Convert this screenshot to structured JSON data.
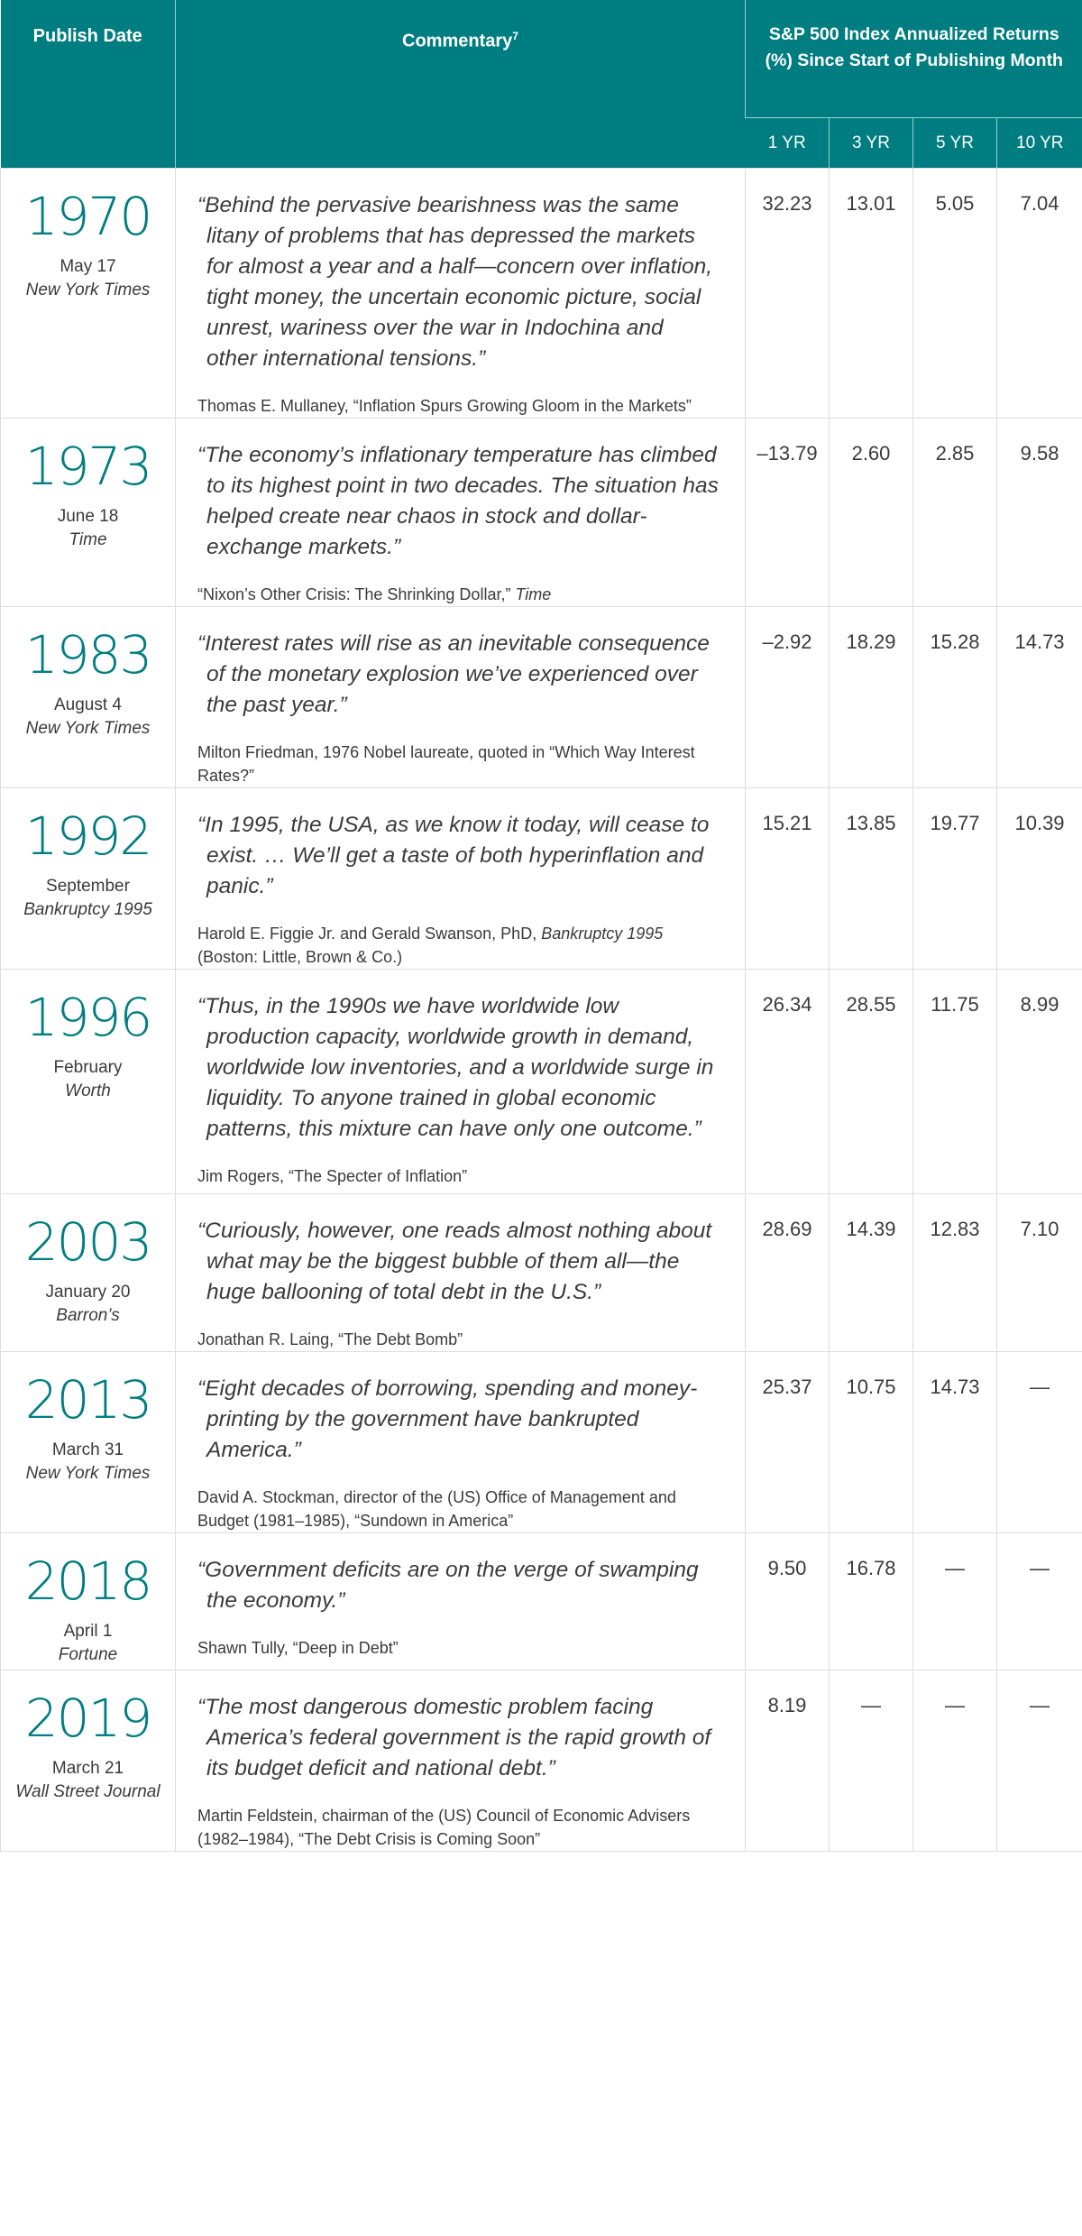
{
  "header": {
    "publish_date": "Publish Date",
    "commentary": "Commentary",
    "commentary_sup": "7",
    "returns_title": "S&P 500 Index Annualized Returns (%) Since Start of Publishing Month",
    "periods": [
      "1 YR",
      "3 YR",
      "5 YR",
      "10 YR"
    ]
  },
  "rows": [
    {
      "year": "1970",
      "date": "May 17",
      "source": "New York Times",
      "quote": "“Behind the pervasive bearishness was the same litany of problems that has depressed the markets for almost a year and a half—concern over inflation, tight money, the uncertain economic picture, social unrest, wariness over the war in Indochina and other international tensions.”",
      "attribution": "Thomas E. Mullaney, “Inflation Spurs Growing Gloom in the Markets”",
      "returns": [
        "32.23",
        "13.01",
        "5.05",
        "7.04"
      ]
    },
    {
      "year": "1973",
      "date": "June 18",
      "source": "Time",
      "quote": "“The economy’s inflationary temperature has climbed to its highest point in two decades. The situation has helped create near chaos in stock and dollar-exchange markets.”",
      "attribution": "“Nixon’s Other Crisis: The Shrinking Dollar,”",
      "attribution_italic": "Time",
      "returns": [
        "–13.79",
        "2.60",
        "2.85",
        "9.58"
      ]
    },
    {
      "year": "1983",
      "date": "August 4",
      "source": "New York Times",
      "quote": "“Interest rates will rise as an inevitable consequence of the monetary explosion we’ve experienced over the past year.”",
      "attribution": "Milton Friedman, 1976 Nobel laureate, quoted in “Which Way Interest Rates?”",
      "returns": [
        "–2.92",
        "18.29",
        "15.28",
        "14.73"
      ]
    },
    {
      "year": "1992",
      "date": "September",
      "source": "Bankruptcy 1995",
      "quote": "“In 1995, the USA, as we know it today, will cease to exist. … We’ll get a taste of both hyperinflation and panic.”",
      "attribution": "Harold E. Figgie Jr. and Gerald Swanson, PhD,",
      "attribution_italic": "Bankruptcy 1995",
      "attribution_tail": "(Boston: Little, Brown & Co.)",
      "returns": [
        "15.21",
        "13.85",
        "19.77",
        "10.39"
      ]
    },
    {
      "year": "1996",
      "date": "February",
      "source": "Worth",
      "quote": "“Thus, in the 1990s we have worldwide low production capacity, worldwide growth in demand, worldwide low inventories, and a worldwide surge in liquidity. To anyone trained in global economic patterns, this mixture can have only one outcome.”",
      "attribution": "Jim Rogers, “The Specter of Inflation”",
      "returns": [
        "26.34",
        "28.55",
        "11.75",
        "8.99"
      ]
    },
    {
      "year": "2003",
      "date": "January 20",
      "source": "Barron’s",
      "quote": "“Curiously, however, one reads almost nothing about what may be the biggest bubble of them all—the huge ballooning of total debt in the U.S.”",
      "attribution": "Jonathan R. Laing, “The Debt Bomb”",
      "returns": [
        "28.69",
        "14.39",
        "12.83",
        "7.10"
      ]
    },
    {
      "year": "2013",
      "date": "March 31",
      "source": "New York Times",
      "quote": "“Eight decades of borrowing, spending and money-printing by the government have bankrupted America.”",
      "attribution": "David A. Stockman, director of the (US) Office of Management and Budget (1981–1985), “Sundown in America”",
      "returns": [
        "25.37",
        "10.75",
        "14.73",
        "—"
      ]
    },
    {
      "year": "2018",
      "date": "April 1",
      "source": "Fortune",
      "quote": "“Government deficits are on the verge of swamping the economy.”",
      "attribution": "Shawn Tully, “Deep in Debt”",
      "returns": [
        "9.50",
        "16.78",
        "—",
        "—"
      ]
    },
    {
      "year": "2019",
      "date": "March 21",
      "source": "Wall Street Journal",
      "quote": "“The most dangerous domestic problem facing America’s federal government is the rapid growth of its budget deficit and national debt.”",
      "attribution": "Martin Feldstein, chairman of the (US) Council of Economic Advisers (1982–1984), “The Debt Crisis is Coming Soon”",
      "returns": [
        "8.19",
        "—",
        "—",
        "—"
      ]
    }
  ]
}
